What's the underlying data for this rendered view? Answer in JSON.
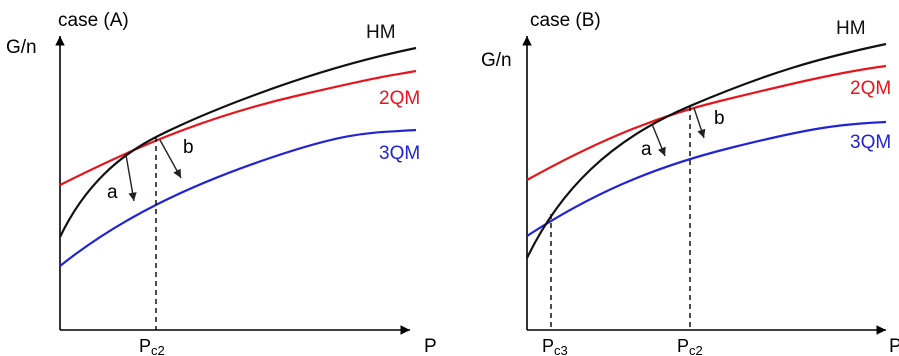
{
  "colors": {
    "hm": "#111111",
    "qm2": "#e8141c",
    "qm3": "#2323d6",
    "axis": "#000000",
    "annotation": "#222222"
  },
  "panel_a": {
    "title": "case (A)",
    "ylabel": "G/n",
    "xlabel": "P",
    "labels": {
      "hm": "HM",
      "qm2": "2QM",
      "qm3": "3QM"
    },
    "arrows": {
      "a": "a",
      "b": "b"
    },
    "ticks": {
      "pc2_main": "P",
      "pc2_sub": "c2"
    }
  },
  "panel_b": {
    "title": "case (B)",
    "ylabel": "G/n",
    "xlabel": "P",
    "labels": {
      "hm": "HM",
      "qm2": "2QM",
      "qm3": "3QM"
    },
    "arrows": {
      "a": "a",
      "b": "b"
    },
    "ticks": {
      "pc3_main": "P",
      "pc3_sub": "c3",
      "pc2_main": "P",
      "pc2_sub": "c2"
    }
  }
}
